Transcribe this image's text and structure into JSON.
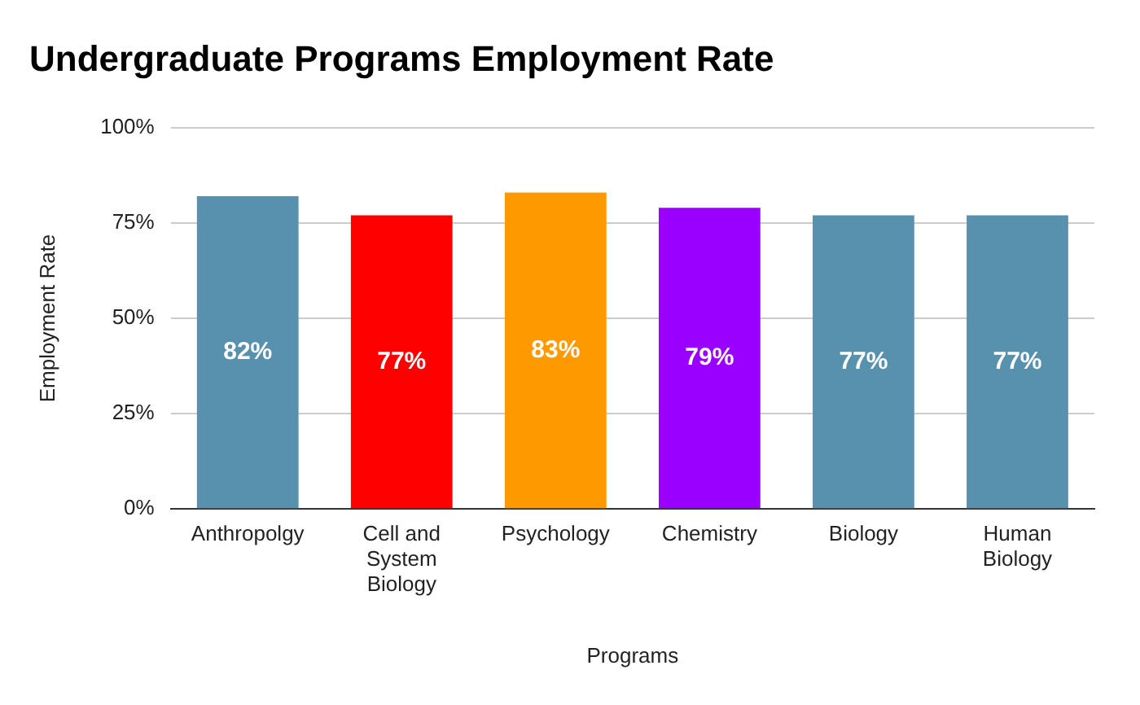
{
  "chart_data": {
    "type": "bar",
    "title": "Undergraduate Programs Employment Rate",
    "xlabel": "Programs",
    "ylabel": "Employment Rate",
    "categories": [
      "Anthropolgy",
      "Cell and System Biology",
      "Psychology",
      "Chemistry",
      "Biology",
      "Human Biology"
    ],
    "values": [
      82,
      77,
      83,
      79,
      77,
      77
    ],
    "colors": [
      "#5891ae",
      "#ff0000",
      "#ff9900",
      "#9900ff",
      "#5891ae",
      "#5891ae"
    ],
    "value_labels": [
      "82%",
      "77%",
      "83%",
      "79%",
      "77%",
      "77%"
    ],
    "ylim": [
      0,
      100
    ],
    "yticks": [
      {
        "value": 0,
        "label": "0%"
      },
      {
        "value": 25,
        "label": "25%"
      },
      {
        "value": 50,
        "label": "50%"
      },
      {
        "value": 75,
        "label": "75%"
      },
      {
        "value": 100,
        "label": "100%"
      }
    ],
    "grid": "y",
    "legend": false
  }
}
